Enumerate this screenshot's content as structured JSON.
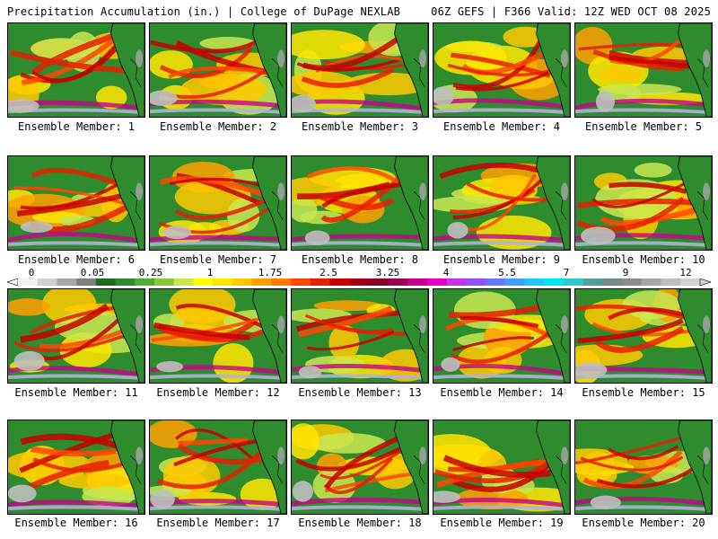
{
  "header": {
    "left_title": "Precipitation Accumulation (in.) | College of DuPage NEXLAB",
    "right_title": "06Z GEFS | F366 Valid: 12Z WED OCT 08 2025"
  },
  "colorbar": {
    "tick_labels": [
      "0",
      "0.05",
      "0.25",
      "1",
      "1.75",
      "2.5",
      "3.25",
      "4",
      "5.5",
      "7",
      "9",
      "12"
    ],
    "colors": [
      "#f2f2f2",
      "#d0d0d0",
      "#a6a6a6",
      "#7f7f7f",
      "#1e6b1e",
      "#2e8b2e",
      "#4caf32",
      "#8cc83c",
      "#c8e650",
      "#ffff00",
      "#ffe600",
      "#ffc800",
      "#ffa000",
      "#ff7800",
      "#ff4600",
      "#e61e00",
      "#c80000",
      "#a00014",
      "#8c0028",
      "#a0005a",
      "#c8008c",
      "#e600c8",
      "#c832e6",
      "#9650ff",
      "#6478ff",
      "#3ca0ff",
      "#1ec8ff",
      "#00e6f0",
      "#32c8c8",
      "#50a0a0",
      "#6e8c8c",
      "#8c8c8c",
      "#a6a6a6",
      "#bebebe",
      "#d2d2d2"
    ]
  },
  "panels": [
    {
      "label": "Ensemble Member: 1"
    },
    {
      "label": "Ensemble Member: 2"
    },
    {
      "label": "Ensemble Member: 3"
    },
    {
      "label": "Ensemble Member: 4"
    },
    {
      "label": "Ensemble Member: 5"
    },
    {
      "label": "Ensemble Member: 6"
    },
    {
      "label": "Ensemble Member: 7"
    },
    {
      "label": "Ensemble Member: 8"
    },
    {
      "label": "Ensemble Member: 9"
    },
    {
      "label": "Ensemble Member: 10"
    },
    {
      "label": "Ensemble Member: 11"
    },
    {
      "label": "Ensemble Member: 12"
    },
    {
      "label": "Ensemble Member: 13"
    },
    {
      "label": "Ensemble Member: 14"
    },
    {
      "label": "Ensemble Member: 15"
    },
    {
      "label": "Ensemble Member: 16"
    },
    {
      "label": "Ensemble Member: 17"
    },
    {
      "label": "Ensemble Member: 18"
    },
    {
      "label": "Ensemble Member: 19"
    },
    {
      "label": "Ensemble Member: 20"
    }
  ]
}
